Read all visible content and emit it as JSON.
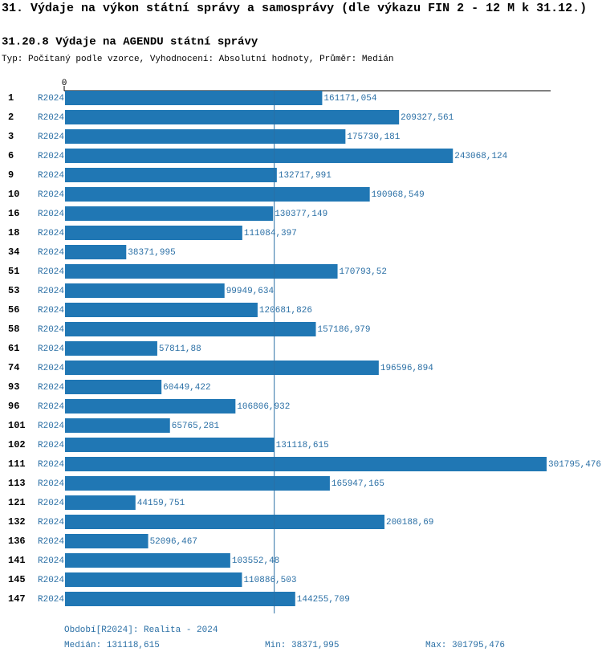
{
  "chart_data": {
    "type": "bar",
    "orientation": "horizontal",
    "title": "31. Výdaje na výkon státní správy a samosprávy (dle výkazu FIN 2 - 12 M k 31.12.)",
    "subtitle": "31.20.8 Výdaje na AGENDU státní správy",
    "description": "Typ: Počítaný podle vzorce, Vyhodnocení: Absolutní hodnoty, Průměr: Medián",
    "categories": [
      "1",
      "2",
      "3",
      "6",
      "9",
      "10",
      "16",
      "18",
      "34",
      "51",
      "53",
      "56",
      "58",
      "61",
      "74",
      "93",
      "96",
      "101",
      "102",
      "111",
      "113",
      "121",
      "132",
      "136",
      "141",
      "145",
      "147"
    ],
    "series": [
      {
        "name": "R2024",
        "color": "#2077b4",
        "values": [
          161171.054,
          209327.561,
          175730.181,
          243068.124,
          132717.991,
          190968.549,
          130377.149,
          111084.397,
          38371.995,
          170793.52,
          99949.634,
          120681.826,
          157186.979,
          57811.88,
          196596.894,
          60449.422,
          106806.932,
          65765.281,
          131118.615,
          301795.476,
          165947.165,
          44159.751,
          200188.69,
          52096.467,
          103552.48,
          110886.503,
          144255.709
        ],
        "value_labels": [
          "161171,054",
          "209327,561",
          "175730,181",
          "243068,124",
          "132717,991",
          "190968,549",
          "130377,149",
          "111084,397",
          "38371,995",
          "170793,52",
          "99949,634",
          "120681,826",
          "157186,979",
          "57811,88",
          "196596,894",
          "60449,422",
          "106806,932",
          "65765,281",
          "131118,615",
          "301795,476",
          "165947,165",
          "44159,751",
          "200188,69",
          "52096,467",
          "103552,48",
          "110886,503",
          "144255,709"
        ]
      }
    ],
    "xlim": [
      0,
      301795.476
    ],
    "xticks": [
      0
    ],
    "period": "Období[R2024]: Realita - 2024",
    "stats": [
      {
        "label": "Medián:",
        "value": 131118.615,
        "value_label": "131118,615"
      },
      {
        "label": "Min:",
        "value": 38371.995,
        "value_label": "38371,995"
      },
      {
        "label": "Max:",
        "value": 301795.476,
        "value_label": "301795,476"
      }
    ]
  }
}
